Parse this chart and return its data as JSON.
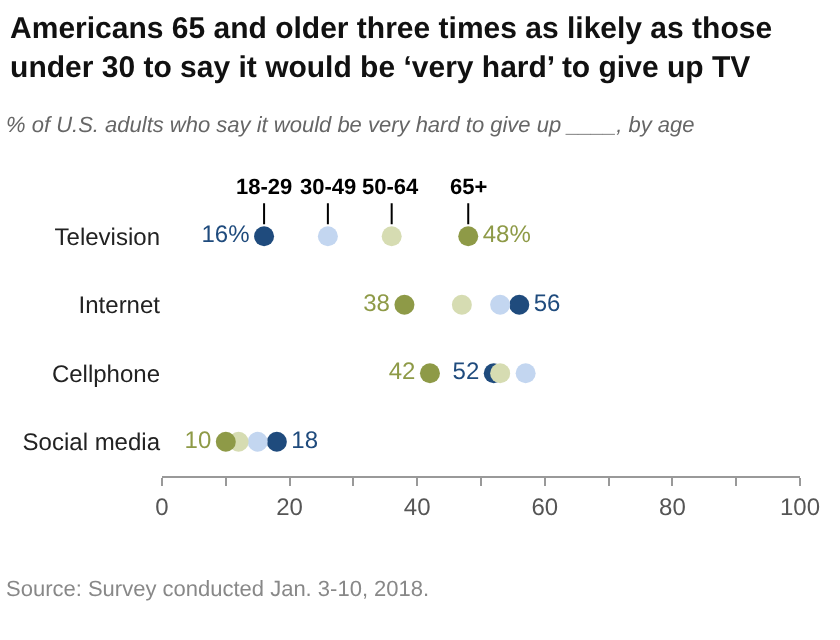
{
  "chart_data": {
    "type": "scatter",
    "orientation": "horizontal",
    "title": "Americans 65 and older three times as likely as those under 30 to say it would be ‘very hard’ to give up TV",
    "subtitle": "% of U.S. adults who say it would be very hard to give up ____, by age",
    "categories": [
      "Television",
      "Internet",
      "Cellphone",
      "Social media"
    ],
    "series": [
      {
        "name": "18-29",
        "color": "#1f4b7d",
        "values": [
          16,
          56,
          52,
          18
        ],
        "value_labels": [
          "16%",
          "56",
          "52",
          "18"
        ]
      },
      {
        "name": "30-49",
        "color": "#c3d6f0",
        "values": [
          26,
          53,
          57,
          15
        ],
        "value_labels": [
          null,
          null,
          null,
          null
        ]
      },
      {
        "name": "50-64",
        "color": "#d6dcb2",
        "values": [
          36,
          47,
          53,
          12
        ],
        "value_labels": [
          null,
          null,
          null,
          null
        ]
      },
      {
        "name": "65+",
        "color": "#8e9a47",
        "values": [
          48,
          38,
          42,
          10
        ],
        "value_labels": [
          "48%",
          "38",
          "42",
          "10"
        ]
      }
    ],
    "xlim": [
      0,
      100
    ],
    "xticks": [
      0,
      {
        "value": 10,
        "label": null
      },
      20,
      {
        "value": 30,
        "label": null
      },
      40,
      {
        "value": 50,
        "label": null
      },
      60,
      {
        "value": 70,
        "label": null
      },
      80,
      {
        "value": 90,
        "label": null
      },
      100
    ],
    "grid": false,
    "legend": false,
    "marker": "circle",
    "annotations": [
      "Source: Survey conducted Jan. 3-10, 2018."
    ]
  }
}
